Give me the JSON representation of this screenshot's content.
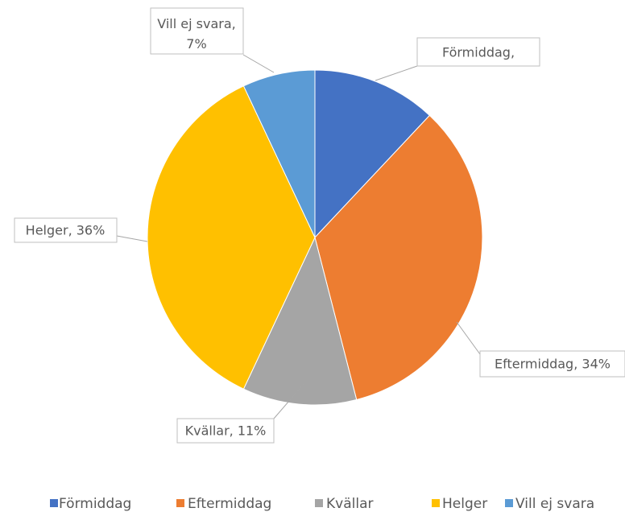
{
  "chart_data": {
    "type": "pie",
    "categories": [
      "Förmiddag",
      "Eftermiddag",
      "Kvällar",
      "Helger",
      "Vill ej svara"
    ],
    "values": [
      12,
      34,
      11,
      36,
      7
    ],
    "value_labels": [
      "Förmiddag,",
      "Eftermiddag, 34%",
      "Kvällar, 11%",
      "Helger, 36%",
      "Vill ej svara,\n7%"
    ],
    "colors": [
      "#4472c4",
      "#ed7d31",
      "#a5a5a5",
      "#ffc000",
      "#5b9bd5"
    ],
    "legend": "bottom"
  }
}
